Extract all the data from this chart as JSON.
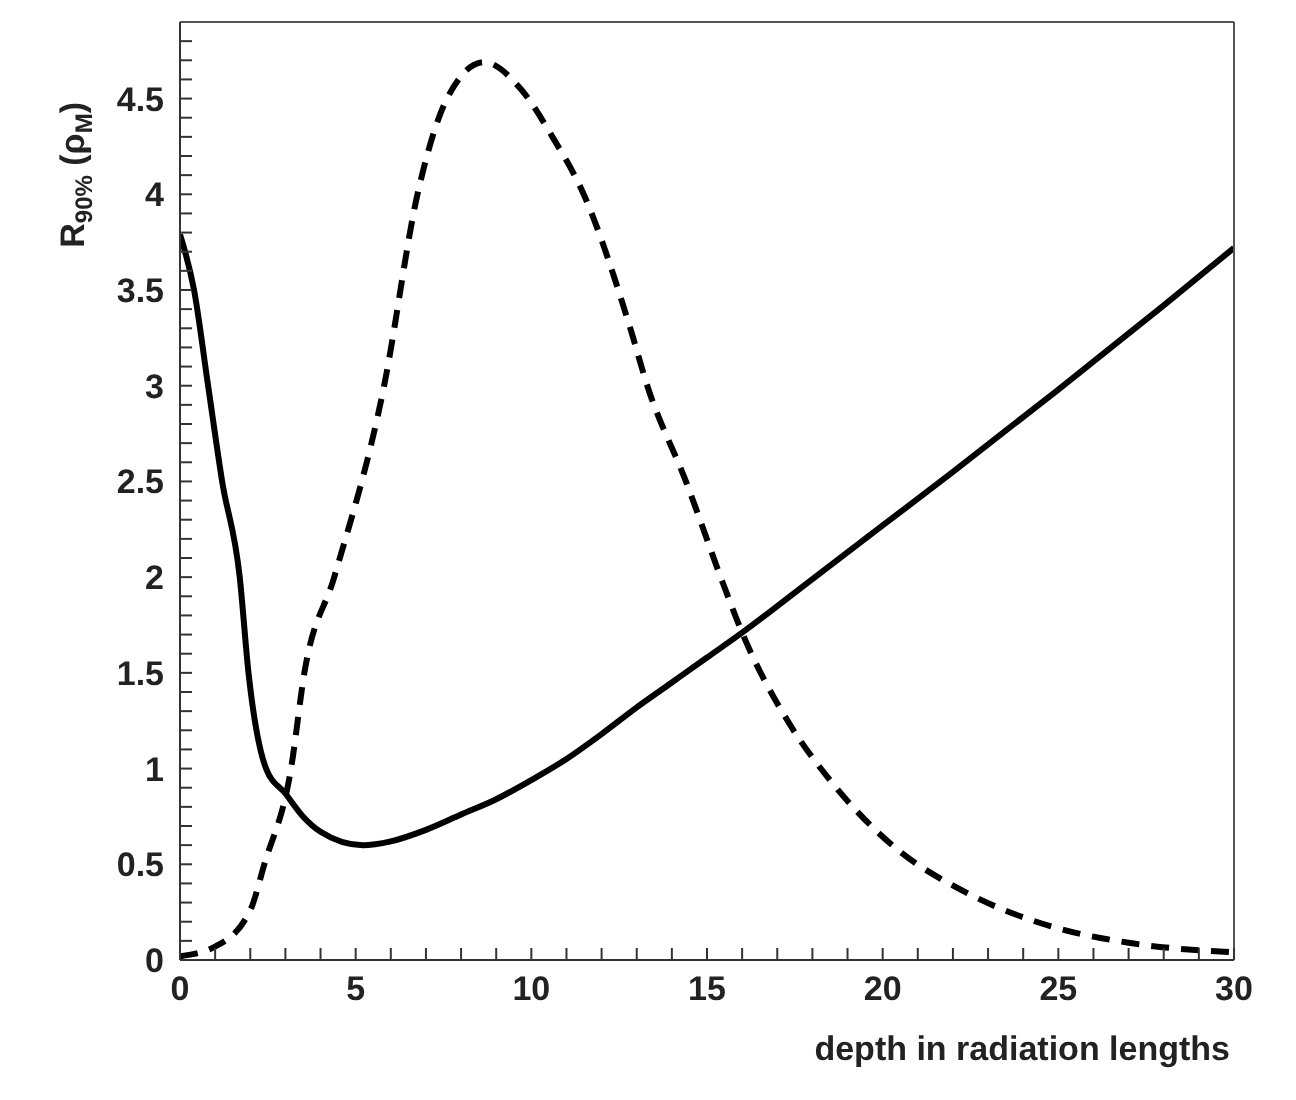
{
  "chart_data": {
    "type": "line",
    "xlabel": "depth in radiation lengths",
    "ylabel": "R$_{90%}$ (ρ$_{M}$)",
    "xlim": [
      0,
      30
    ],
    "ylim": [
      0,
      4.9
    ],
    "xticks": [
      0,
      {
        "value": 1,
        "label": null
      },
      {
        "value": 2,
        "label": null
      },
      {
        "value": 3,
        "label": null
      },
      {
        "value": 4,
        "label": null
      },
      5,
      {
        "value": 6,
        "label": null
      },
      {
        "value": 7,
        "label": null
      },
      {
        "value": 8,
        "label": null
      },
      {
        "value": 9,
        "label": null
      },
      10,
      {
        "value": 11,
        "label": null
      },
      {
        "value": 12,
        "label": null
      },
      {
        "value": 13,
        "label": null
      },
      {
        "value": 14,
        "label": null
      },
      15,
      {
        "value": 16,
        "label": null
      },
      {
        "value": 17,
        "label": null
      },
      {
        "value": 18,
        "label": null
      },
      {
        "value": 19,
        "label": null
      },
      20,
      {
        "value": 21,
        "label": null
      },
      {
        "value": 22,
        "label": null
      },
      {
        "value": 23,
        "label": null
      },
      {
        "value": 24,
        "label": null
      },
      25,
      {
        "value": 26,
        "label": null
      },
      {
        "value": 27,
        "label": null
      },
      {
        "value": 28,
        "label": null
      },
      {
        "value": 29,
        "label": null
      },
      30
    ],
    "yticks": [
      0,
      {
        "value": 0.1,
        "label": null
      },
      {
        "value": 0.2,
        "label": null
      },
      {
        "value": 0.3,
        "label": null
      },
      {
        "value": 0.4,
        "label": null
      },
      0.5,
      {
        "value": 0.6,
        "label": null
      },
      {
        "value": 0.7,
        "label": null
      },
      {
        "value": 0.8,
        "label": null
      },
      {
        "value": 0.9,
        "label": null
      },
      1,
      {
        "value": 1.1,
        "label": null
      },
      {
        "value": 1.2,
        "label": null
      },
      {
        "value": 1.3,
        "label": null
      },
      {
        "value": 1.4,
        "label": null
      },
      1.5,
      {
        "value": 1.6,
        "label": null
      },
      {
        "value": 1.7,
        "label": null
      },
      {
        "value": 1.8,
        "label": null
      },
      {
        "value": 1.9,
        "label": null
      },
      2,
      {
        "value": 2.1,
        "label": null
      },
      {
        "value": 2.2,
        "label": null
      },
      {
        "value": 2.3,
        "label": null
      },
      {
        "value": 2.4,
        "label": null
      },
      2.5,
      {
        "value": 2.6,
        "label": null
      },
      {
        "value": 2.7,
        "label": null
      },
      {
        "value": 2.8,
        "label": null
      },
      {
        "value": 2.9,
        "label": null
      },
      3,
      {
        "value": 3.1,
        "label": null
      },
      {
        "value": 3.2,
        "label": null
      },
      {
        "value": 3.3,
        "label": null
      },
      {
        "value": 3.4,
        "label": null
      },
      3.5,
      {
        "value": 3.6,
        "label": null
      },
      {
        "value": 3.7,
        "label": null
      },
      {
        "value": 3.8,
        "label": null
      },
      {
        "value": 3.9,
        "label": null
      },
      4,
      {
        "value": 4.1,
        "label": null
      },
      {
        "value": 4.2,
        "label": null
      },
      {
        "value": 4.3,
        "label": null
      },
      {
        "value": 4.4,
        "label": null
      },
      4.5,
      {
        "value": 4.6,
        "label": null
      },
      {
        "value": 4.7,
        "label": null
      },
      {
        "value": 4.8,
        "label": null
      }
    ],
    "grid": false,
    "marker": "none",
    "series": [
      {
        "color": "#000000",
        "line_style": "solid",
        "x": [
          0,
          0.4,
          0.8,
          1.2,
          1.7,
          1.95,
          2.45,
          3.0,
          3.5,
          4,
          5.2,
          6,
          7,
          8,
          9,
          10,
          11,
          12,
          13,
          14,
          15,
          16,
          18,
          20,
          22,
          25,
          28,
          30
        ],
        "values": [
          3.79,
          3.5,
          3.0,
          2.5,
          2.0,
          1.5,
          1.0,
          0.87,
          0.75,
          0.67,
          0.6,
          0.62,
          0.68,
          0.76,
          0.84,
          0.94,
          1.05,
          1.18,
          1.32,
          1.45,
          1.58,
          1.71,
          1.99,
          2.27,
          2.55,
          2.98,
          3.42,
          3.72
        ]
      },
      {
        "color": "#000000",
        "line_style": "dashed",
        "x": [
          0,
          1,
          2,
          2.4,
          3.16,
          3.54,
          4.39,
          5.81,
          6.76,
          7.6,
          8.65,
          9.7,
          10.6,
          11.49,
          12.8,
          13.3,
          14.4,
          15.47,
          16,
          17.36,
          18.5,
          20.4,
          22.3,
          24.9,
          27,
          30
        ],
        "values": [
          0.02,
          0.07,
          0.26,
          0.5,
          1.0,
          1.5,
          2.0,
          3.0,
          4.0,
          4.5,
          4.69,
          4.55,
          4.3,
          4.0,
          3.31,
          3.0,
          2.5,
          1.96,
          1.71,
          1.23,
          0.94,
          0.58,
          0.36,
          0.17,
          0.09,
          0.04
        ]
      }
    ]
  }
}
